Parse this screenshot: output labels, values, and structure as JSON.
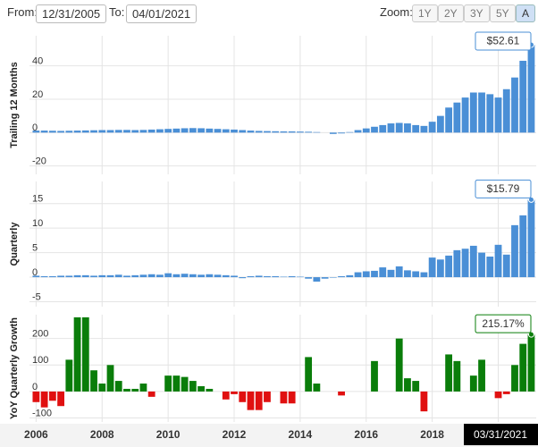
{
  "controls": {
    "from_label": "From:",
    "from_value": "12/31/2005",
    "to_label": "To:",
    "to_value": "04/01/2021",
    "zoom_label": "Zoom:",
    "zoom_buttons": [
      "1Y",
      "2Y",
      "3Y",
      "5Y",
      "A"
    ]
  },
  "hover_date": "03/31/2021",
  "chart_data": [
    {
      "type": "bar",
      "y_label": "Trailing 12 Months",
      "color": "#4a8fd6",
      "x": [
        2006,
        2006.25,
        2006.5,
        2006.75,
        2007,
        2007.25,
        2007.5,
        2007.75,
        2008,
        2008.25,
        2008.5,
        2008.75,
        2009,
        2009.25,
        2009.5,
        2009.75,
        2010,
        2010.25,
        2010.5,
        2010.75,
        2011,
        2011.25,
        2011.5,
        2011.75,
        2012,
        2012.25,
        2012.5,
        2012.75,
        2013,
        2013.25,
        2013.5,
        2013.75,
        2014,
        2014.25,
        2014.5,
        2014.75,
        2015,
        2015.25,
        2015.5,
        2015.75,
        2016,
        2016.25,
        2016.5,
        2016.75,
        2017,
        2017.25,
        2017.5,
        2017.75,
        2018,
        2018.25,
        2018.5,
        2018.75,
        2019,
        2019.25,
        2019.5,
        2019.75,
        2020,
        2020.25,
        2020.5,
        2020.75,
        2021
      ],
      "values": [
        1.2,
        1.2,
        1.1,
        1.0,
        1.1,
        1.2,
        1.3,
        1.4,
        1.5,
        1.5,
        1.6,
        1.6,
        1.5,
        1.6,
        1.8,
        2.0,
        2.2,
        2.4,
        2.6,
        2.7,
        2.6,
        2.4,
        2.2,
        2.0,
        1.8,
        1.5,
        1.2,
        1.0,
        0.9,
        0.8,
        0.7,
        0.7,
        0.6,
        0.5,
        0.3,
        0.0,
        -0.8,
        -0.5,
        0.3,
        1.5,
        2.5,
        3.5,
        4.5,
        5.5,
        5.8,
        5.5,
        4.5,
        4.0,
        6.5,
        10,
        15,
        18,
        21,
        24,
        24,
        23,
        21,
        26,
        33,
        43,
        52.61
      ],
      "value_labels": [
        null,
        null,
        null,
        null,
        null,
        null,
        null,
        null,
        null,
        null,
        null,
        null,
        null,
        null,
        null,
        null,
        null,
        null,
        null,
        null,
        null,
        null,
        null,
        null,
        null,
        null,
        null,
        null,
        null,
        null,
        null,
        null,
        null,
        null,
        null,
        null,
        null,
        null,
        null,
        null,
        null,
        null,
        null,
        null,
        null,
        null,
        null,
        null,
        null,
        null,
        null,
        null,
        null,
        null,
        null,
        null,
        null,
        null,
        null,
        null,
        "$52.61"
      ],
      "xlim": [
        2005.8,
        2021.15
      ],
      "ylim": [
        -25,
        58
      ],
      "yticks": [
        -20,
        0,
        20,
        40
      ],
      "grid": true
    },
    {
      "type": "bar",
      "y_label": "Quarterly",
      "color": "#4a8fd6",
      "x": [
        2006,
        2006.25,
        2006.5,
        2006.75,
        2007,
        2007.25,
        2007.5,
        2007.75,
        2008,
        2008.25,
        2008.5,
        2008.75,
        2009,
        2009.25,
        2009.5,
        2009.75,
        2010,
        2010.25,
        2010.5,
        2010.75,
        2011,
        2011.25,
        2011.5,
        2011.75,
        2012,
        2012.25,
        2012.5,
        2012.75,
        2013,
        2013.25,
        2013.5,
        2013.75,
        2014,
        2014.25,
        2014.5,
        2014.75,
        2015,
        2015.25,
        2015.5,
        2015.75,
        2016,
        2016.25,
        2016.5,
        2016.75,
        2017,
        2017.25,
        2017.5,
        2017.75,
        2018,
        2018.25,
        2018.5,
        2018.75,
        2019,
        2019.25,
        2019.5,
        2019.75,
        2020,
        2020.25,
        2020.5,
        2020.75,
        2021
      ],
      "values": [
        0.3,
        0.2,
        0.2,
        0.3,
        0.3,
        0.4,
        0.4,
        0.3,
        0.4,
        0.4,
        0.5,
        0.3,
        0.4,
        0.5,
        0.6,
        0.5,
        0.8,
        0.6,
        0.7,
        0.6,
        0.5,
        0.6,
        0.5,
        0.4,
        0.3,
        -0.2,
        0.2,
        0.3,
        0.2,
        0.2,
        0.1,
        0.2,
        0.1,
        -0.3,
        -0.9,
        -0.3,
        -0.1,
        0.2,
        0.4,
        1.0,
        1.2,
        1.3,
        2.0,
        1.5,
        2.2,
        1.4,
        1.2,
        1.0,
        4.0,
        3.6,
        4.4,
        5.5,
        5.8,
        6.4,
        5.0,
        4.2,
        6.6,
        4.6,
        10.6,
        12.6,
        15.79
      ],
      "value_labels": [
        null,
        null,
        null,
        null,
        null,
        null,
        null,
        null,
        null,
        null,
        null,
        null,
        null,
        null,
        null,
        null,
        null,
        null,
        null,
        null,
        null,
        null,
        null,
        null,
        null,
        null,
        null,
        null,
        null,
        null,
        null,
        null,
        null,
        null,
        null,
        null,
        null,
        null,
        null,
        null,
        null,
        null,
        null,
        null,
        null,
        null,
        null,
        null,
        null,
        null,
        null,
        null,
        null,
        null,
        null,
        null,
        null,
        null,
        null,
        null,
        "$15.79"
      ],
      "xlim": [
        2005.8,
        2021.15
      ],
      "ylim": [
        -6,
        19.5
      ],
      "yticks": [
        -5,
        0,
        5,
        10,
        15
      ],
      "grid": true
    },
    {
      "type": "signed-bar",
      "y_label": "YoY Quarterly Growth",
      "positive_color": "#0a7d0a",
      "negative_color": "#e01010",
      "x": [
        2006,
        2006.25,
        2006.5,
        2006.75,
        2007,
        2007.25,
        2007.5,
        2007.75,
        2008,
        2008.25,
        2008.5,
        2008.75,
        2009,
        2009.25,
        2009.5,
        2009.75,
        2010,
        2010.25,
        2010.5,
        2010.75,
        2011,
        2011.25,
        2011.5,
        2011.75,
        2012,
        2012.25,
        2012.5,
        2012.75,
        2013,
        2013.25,
        2013.5,
        2013.75,
        2014,
        2014.25,
        2014.5,
        2014.75,
        2015,
        2015.25,
        2015.5,
        2015.75,
        2016,
        2016.25,
        2016.5,
        2016.75,
        2017,
        2017.25,
        2017.5,
        2017.75,
        2018,
        2018.25,
        2018.5,
        2018.75,
        2019,
        2019.25,
        2019.5,
        2019.75,
        2020,
        2020.25,
        2020.5,
        2020.75,
        2021
      ],
      "values": [
        -40,
        -60,
        -35,
        -55,
        120,
        280,
        280,
        80,
        30,
        100,
        40,
        10,
        10,
        30,
        -20,
        0,
        60,
        60,
        55,
        40,
        20,
        10,
        0,
        -30,
        -10,
        -40,
        -70,
        -70,
        -40,
        0,
        -45,
        -45,
        0,
        130,
        30,
        0,
        0,
        -15,
        0,
        0,
        0,
        115,
        0,
        0,
        200,
        50,
        40,
        -75,
        0,
        0,
        140,
        115,
        0,
        60,
        120,
        0,
        -25,
        -10,
        100,
        180,
        215.17
      ],
      "value_labels": [
        null,
        null,
        null,
        null,
        null,
        null,
        null,
        null,
        null,
        null,
        null,
        null,
        null,
        null,
        null,
        null,
        null,
        null,
        null,
        null,
        null,
        null,
        null,
        null,
        null,
        null,
        null,
        null,
        null,
        null,
        null,
        null,
        null,
        null,
        null,
        null,
        null,
        null,
        null,
        null,
        null,
        null,
        null,
        null,
        null,
        null,
        null,
        null,
        null,
        null,
        null,
        null,
        null,
        null,
        null,
        null,
        null,
        null,
        null,
        null,
        "215.17%"
      ],
      "xlim": [
        2005.8,
        2021.15
      ],
      "ylim": [
        -115,
        290
      ],
      "yticks": [
        -100,
        0,
        100,
        200
      ],
      "grid": true,
      "xticks": [
        2006,
        2008,
        2010,
        2012,
        2014,
        2016,
        2018,
        2020
      ]
    }
  ]
}
